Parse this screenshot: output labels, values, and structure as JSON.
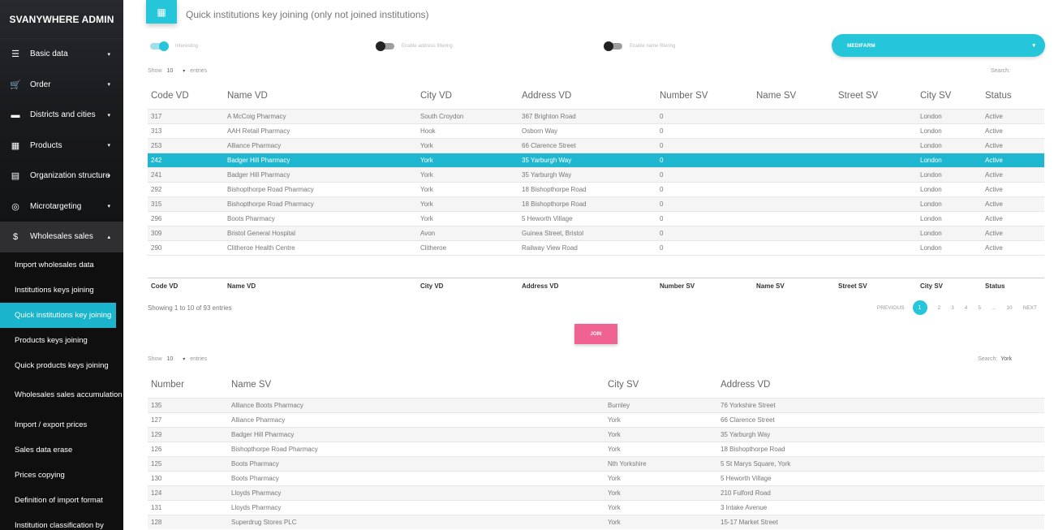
{
  "brand": "SVANYWHERE ADMIN",
  "menu": [
    {
      "label": "Basic data",
      "icon": "list-icon",
      "glyph": "☰",
      "arrow": "▾"
    },
    {
      "label": "Order",
      "icon": "cart-icon",
      "glyph": "🛒",
      "arrow": "▾"
    },
    {
      "label": "Districts and cities",
      "icon": "sofa-icon",
      "glyph": "▬",
      "arrow": "▾"
    },
    {
      "label": "Products",
      "icon": "grid-icon",
      "glyph": "▦",
      "arrow": "▾"
    },
    {
      "label": "Organization structure",
      "icon": "building-icon",
      "glyph": "▤",
      "arrow": "▾"
    },
    {
      "label": "Microtargeting",
      "icon": "target-icon",
      "glyph": "◎",
      "arrow": "▾"
    },
    {
      "label": "Wholesales sales",
      "icon": "dollar-icon",
      "glyph": "$",
      "arrow": "▴"
    }
  ],
  "submenu": [
    "Import wholesales data",
    "Institutions keys joining",
    "Quick institutions key joining",
    "Products keys joining",
    "Quick products keys joining",
    "Wholesales sales accumulation",
    "Import / export prices",
    "Sales data erase",
    "Prices copying",
    "Definition of import format",
    "Institution classification by"
  ],
  "header": {
    "title": "Quick institutions key joining (only not joined institutions)",
    "icon_glyph": "▦"
  },
  "toggles": [
    {
      "label": "Interesting",
      "state": "on"
    },
    {
      "label": "Enable address filtering",
      "state": "off"
    },
    {
      "label": "Enable name filtering",
      "state": "off"
    }
  ],
  "select": {
    "value": "MEDIFARM",
    "caret": "▾"
  },
  "table1": {
    "show": "Show",
    "entries_count": "10",
    "caret": "▾",
    "entries": "entries",
    "search": "Search:",
    "search_value": "",
    "columns": [
      "Code VD",
      "Name VD",
      "City VD",
      "Address VD",
      "Number SV",
      "Name SV",
      "Street SV",
      "City SV",
      "Status"
    ],
    "rows": [
      [
        "317",
        "A McCoig Pharmacy",
        "South Croydon",
        "367 Brighton Road",
        "0",
        "",
        "",
        "London",
        "Active"
      ],
      [
        "313",
        "AAH Retail Pharmacy",
        "Hook",
        "Osborn Way",
        "0",
        "",
        "",
        "London",
        "Active"
      ],
      [
        "253",
        "Alliance Pharmacy",
        "York",
        "66 Clarence Street",
        "0",
        "",
        "",
        "London",
        "Active"
      ],
      [
        "242",
        "Badger Hill Pharmacy",
        "York",
        "35 Yarburgh Way",
        "0",
        "",
        "",
        "London",
        "Active"
      ],
      [
        "241",
        "Badger Hill Pharmacy",
        "York",
        "35 Yarburgh Way",
        "0",
        "",
        "",
        "London",
        "Active"
      ],
      [
        "292",
        "Bishopthorpe Road Pharmacy",
        "York",
        "18 Bishopthorpe Road",
        "0",
        "",
        "",
        "London",
        "Active"
      ],
      [
        "315",
        "Bishopthorpe Road Pharmacy",
        "York",
        "18 Bishopthorpe Road",
        "0",
        "",
        "",
        "London",
        "Active"
      ],
      [
        "296",
        "Boots Pharmacy",
        "York",
        "5 Heworth Village",
        "0",
        "",
        "",
        "London",
        "Active"
      ],
      [
        "309",
        "Bristol General Hospital",
        "Avon",
        "Guinea Street, Bristol",
        "0",
        "",
        "",
        "London",
        "Active"
      ],
      [
        "290",
        "Clitheroe Health Centre",
        "Clitheroe",
        "Railway View Road",
        "0",
        "",
        "",
        "London",
        "Active"
      ]
    ],
    "selected_row": 3,
    "info": "Showing 1 to 10 of 93 entries",
    "pager": [
      "PREVIOUS",
      "1",
      "2",
      "3",
      "4",
      "5",
      "...",
      "10",
      "NEXT"
    ]
  },
  "join_label": "JOIN",
  "table2": {
    "show": "Show",
    "entries_count": "10",
    "caret": "▾",
    "entries": "entries",
    "search": "Search:",
    "search_value": "York",
    "columns": [
      "Number",
      "Name SV",
      "City SV",
      "Address VD"
    ],
    "rows": [
      [
        "135",
        "Alliance Boots Pharmacy",
        "Burnley",
        "76 Yorkshire Street"
      ],
      [
        "127",
        "Alliance Pharmacy",
        "York",
        "66 Clarence Street"
      ],
      [
        "129",
        "Badger Hill Pharmacy",
        "York",
        "35 Yarburgh Way"
      ],
      [
        "126",
        "Bishopthorpe Road Pharmacy",
        "York",
        "18 Bishopthorpe Road"
      ],
      [
        "125",
        "Boots Pharmacy",
        "Nth Yorkshire",
        "5 St Marys Square, York"
      ],
      [
        "130",
        "Boots Pharmacy",
        "York",
        "5 Heworth Village"
      ],
      [
        "124",
        "Lloyds Pharmacy",
        "York",
        "210 Fulford Road"
      ],
      [
        "131",
        "Lloyds Pharmacy",
        "York",
        "3 Intake Avenue"
      ],
      [
        "128",
        "Superdrug Stores PLC",
        "York",
        "15-17 Market Street"
      ]
    ]
  }
}
